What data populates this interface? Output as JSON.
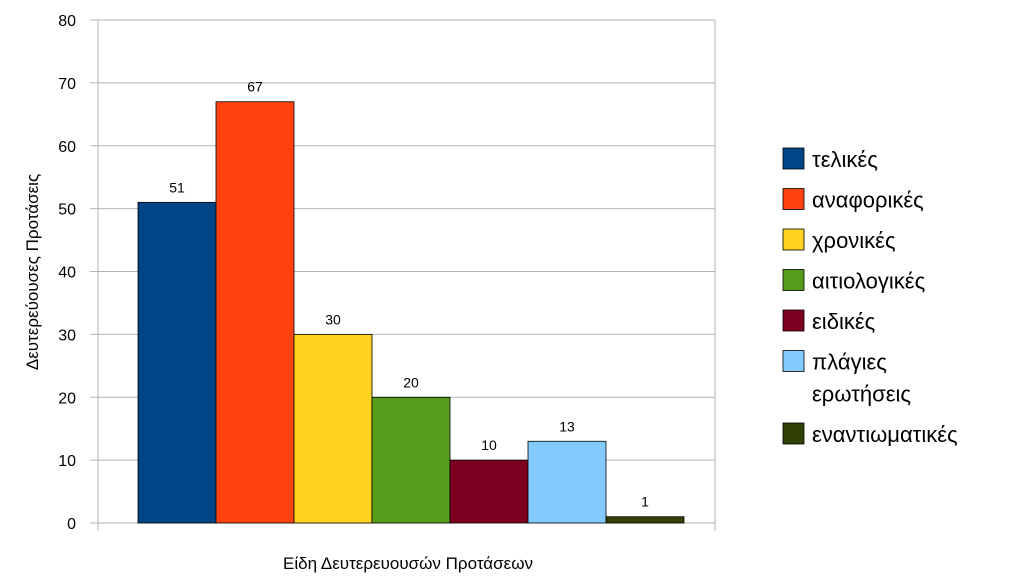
{
  "chart_data": {
    "type": "bar",
    "title": "",
    "xlabel": "Είδη Δευτερευουσών Προτάσεων",
    "ylabel": "Δευτερεύουσες Προτάσεις",
    "ylim": [
      0,
      80
    ],
    "yticks": [
      "0",
      "10",
      "20",
      "30",
      "40",
      "50",
      "60",
      "70",
      "80"
    ],
    "grid": true,
    "legend_position": "right",
    "series": [
      {
        "name": "τελικές",
        "value": 51,
        "color": "#004586"
      },
      {
        "name": "αναφορικές",
        "value": 67,
        "color": "#ff420e"
      },
      {
        "name": "χρονικές",
        "value": 30,
        "color": "#ffd320"
      },
      {
        "name": "αιτιολογικές",
        "value": 20,
        "color": "#579d1c"
      },
      {
        "name": "ειδικές",
        "value": 10,
        "color": "#7e0021"
      },
      {
        "name": "πλάγιες ερωτήσεις",
        "legend_lines": [
          "πλάγιες",
          "ερωτήσεις"
        ],
        "value": 13,
        "color": "#83caff"
      },
      {
        "name": "εναντιωματικές",
        "value": 1,
        "color": "#314004"
      }
    ]
  }
}
